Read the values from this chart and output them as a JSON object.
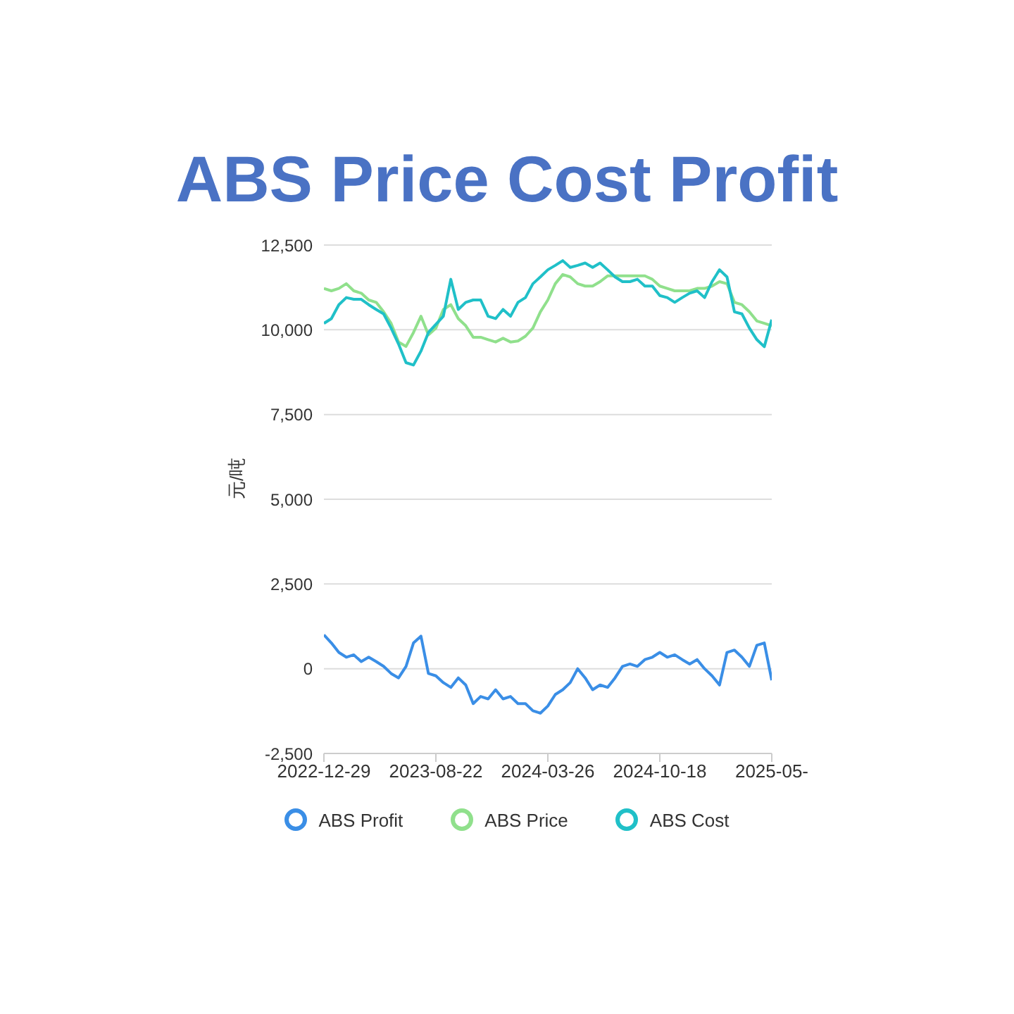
{
  "chart_data": {
    "type": "line",
    "title": "ABS Price Cost Profit",
    "ylabel": "元/吨",
    "categories": [
      "2022-12-29",
      null,
      null,
      null,
      null,
      null,
      null,
      null,
      null,
      null,
      null,
      null,
      null,
      null,
      null,
      "2023-08-22",
      null,
      null,
      null,
      null,
      null,
      null,
      null,
      null,
      null,
      null,
      null,
      null,
      null,
      null,
      "2024-03-26",
      null,
      null,
      null,
      null,
      null,
      null,
      null,
      null,
      null,
      null,
      null,
      null,
      null,
      null,
      "2024-10-18",
      null,
      null,
      null,
      null,
      null,
      null,
      null,
      null,
      null,
      null,
      null,
      null,
      null,
      null,
      "2025-05-"
    ],
    "series": [
      {
        "name": "ABS Profit",
        "color": "#3a8ee6",
        "values": [
          1000,
          760,
          480,
          340,
          410,
          210,
          340,
          210,
          70,
          -140,
          -270,
          70,
          760,
          960,
          -140,
          -210,
          -410,
          -550,
          -270,
          -480,
          -1030,
          -820,
          -890,
          -620,
          -890,
          -820,
          -1030,
          -1030,
          -1240,
          -1310,
          -1100,
          -760,
          -620,
          -410,
          0,
          -270,
          -620,
          -480,
          -550,
          -270,
          70,
          140,
          70,
          270,
          340,
          480,
          340,
          410,
          270,
          140,
          270,
          0,
          -210,
          -480,
          480,
          550,
          340,
          70,
          690,
          760,
          -340
        ]
      },
      {
        "name": "ABS Price",
        "color": "#90e08c",
        "values": [
          11220,
          11150,
          11220,
          11360,
          11150,
          11080,
          10880,
          10810,
          10530,
          10190,
          9640,
          9510,
          9920,
          10400,
          9850,
          10050,
          10600,
          10740,
          10330,
          10120,
          9780,
          9780,
          9710,
          9640,
          9750,
          9640,
          9670,
          9810,
          10050,
          10530,
          10880,
          11360,
          11630,
          11560,
          11360,
          11290,
          11290,
          11420,
          11590,
          11590,
          11590,
          11590,
          11590,
          11590,
          11490,
          11290,
          11220,
          11150,
          11150,
          11150,
          11220,
          11220,
          11290,
          11420,
          11360,
          10810,
          10740,
          10530,
          10260,
          10190,
          10120
        ]
      },
      {
        "name": "ABS Cost",
        "color": "#20c0c8",
        "values": [
          10190,
          10330,
          10740,
          10950,
          10900,
          10900,
          10740,
          10600,
          10470,
          10050,
          9580,
          9030,
          8960,
          9370,
          9920,
          10160,
          10400,
          11490,
          10600,
          10810,
          10880,
          10880,
          10400,
          10330,
          10600,
          10400,
          10810,
          10950,
          11360,
          11560,
          11770,
          11900,
          12040,
          11840,
          11900,
          11970,
          11840,
          11970,
          11770,
          11560,
          11420,
          11420,
          11490,
          11290,
          11290,
          11010,
          10950,
          10810,
          10950,
          11080,
          11150,
          10950,
          11420,
          11770,
          11560,
          10530,
          10470,
          10050,
          9710,
          9500,
          10300
        ]
      }
    ],
    "ylim": [
      -2500,
      12500
    ],
    "yticks": [
      {
        "value": -2500,
        "label": "-2,500"
      },
      0,
      {
        "value": 2500,
        "label": "2,500"
      },
      {
        "value": 5000,
        "label": "5,000"
      },
      {
        "value": 7500,
        "label": "7,500"
      },
      {
        "value": 10000,
        "label": "10,000"
      },
      {
        "value": 12500,
        "label": "12,500"
      }
    ],
    "grid": "y",
    "legend": "bottom",
    "marker": "none",
    "line_style": "solid"
  }
}
